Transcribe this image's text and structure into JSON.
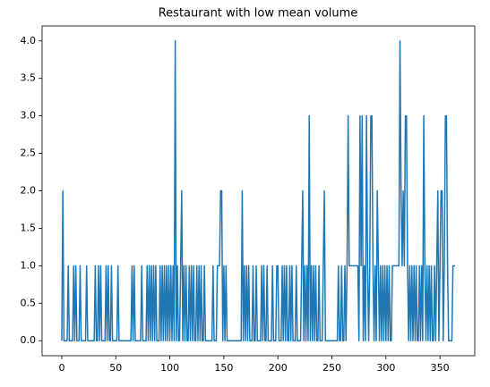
{
  "chart_data": {
    "type": "line",
    "title": "Restaurant with low mean volume",
    "color": "#1f77b4",
    "x": [
      0,
      1,
      2,
      3,
      4,
      5,
      6,
      7,
      8,
      9,
      10,
      11,
      12,
      13,
      14,
      15,
      16,
      17,
      18,
      19,
      20,
      21,
      22,
      23,
      24,
      25,
      26,
      27,
      28,
      29,
      30,
      31,
      32,
      33,
      34,
      35,
      36,
      37,
      38,
      39,
      40,
      41,
      42,
      43,
      44,
      45,
      46,
      47,
      48,
      49,
      50,
      51,
      52,
      53,
      54,
      55,
      56,
      57,
      58,
      59,
      60,
      61,
      62,
      63,
      64,
      65,
      66,
      67,
      68,
      69,
      70,
      71,
      72,
      73,
      74,
      75,
      76,
      77,
      78,
      79,
      80,
      81,
      82,
      83,
      84,
      85,
      86,
      87,
      88,
      89,
      90,
      91,
      92,
      93,
      94,
      95,
      96,
      97,
      98,
      99,
      100,
      101,
      102,
      103,
      104,
      105,
      106,
      107,
      108,
      109,
      110,
      111,
      112,
      113,
      114,
      115,
      116,
      117,
      118,
      119,
      120,
      121,
      122,
      123,
      124,
      125,
      126,
      127,
      128,
      129,
      130,
      131,
      132,
      133,
      134,
      135,
      136,
      137,
      138,
      139,
      140,
      141,
      142,
      143,
      144,
      145,
      146,
      147,
      148,
      149,
      150,
      151,
      152,
      153,
      154,
      155,
      156,
      157,
      158,
      159,
      160,
      161,
      162,
      163,
      164,
      165,
      166,
      167,
      168,
      169,
      170,
      171,
      172,
      173,
      174,
      175,
      176,
      177,
      178,
      179,
      180,
      181,
      182,
      183,
      184,
      185,
      186,
      187,
      188,
      189,
      190,
      191,
      192,
      193,
      194,
      195,
      196,
      197,
      198,
      199,
      200,
      201,
      202,
      203,
      204,
      205,
      206,
      207,
      208,
      209,
      210,
      211,
      212,
      213,
      214,
      215,
      216,
      217,
      218,
      219,
      220,
      221,
      222,
      223,
      224,
      225,
      226,
      227,
      228,
      229,
      230,
      231,
      232,
      233,
      234,
      235,
      236,
      237,
      238,
      239,
      240,
      241,
      242,
      243,
      244,
      245,
      246,
      247,
      248,
      249,
      250,
      251,
      252,
      253,
      254,
      255,
      256,
      257,
      258,
      259,
      260,
      261,
      262,
      263,
      264,
      265,
      266,
      267,
      268,
      269,
      270,
      271,
      272,
      273,
      274,
      275,
      276,
      277,
      278,
      279,
      280,
      281,
      282,
      283,
      284,
      285,
      286,
      287,
      288,
      289,
      290,
      291,
      292,
      293,
      294,
      295,
      296,
      297,
      298,
      299,
      300,
      301,
      302,
      303,
      304,
      305,
      306,
      307,
      308,
      309,
      310,
      311,
      312,
      313,
      314,
      315,
      316,
      317,
      318,
      319,
      320,
      321,
      322,
      323,
      324,
      325,
      326,
      327,
      328,
      329,
      330,
      331,
      332,
      333,
      334,
      335,
      336,
      337,
      338,
      339,
      340,
      341,
      342,
      343,
      344,
      345,
      346,
      347,
      348,
      349,
      350,
      351,
      352,
      353,
      354,
      355,
      356,
      357,
      358,
      359,
      360,
      361,
      362,
      363,
      364
    ],
    "values": [
      0,
      2,
      0,
      0,
      0,
      0,
      1,
      0,
      0,
      0,
      0,
      1,
      0,
      1,
      0,
      0,
      0,
      1,
      0,
      0,
      0,
      0,
      0,
      1,
      0,
      0,
      0,
      0,
      0,
      0,
      0,
      1,
      0,
      0,
      1,
      0,
      1,
      0,
      0,
      0,
      0,
      1,
      0,
      1,
      0,
      0,
      1,
      0,
      0,
      0,
      0,
      0,
      1,
      0,
      0,
      0,
      0,
      0,
      0,
      0,
      0,
      0,
      0,
      0,
      0,
      1,
      0,
      1,
      0,
      0,
      0,
      0,
      0,
      0,
      1,
      0,
      0,
      0,
      0,
      1,
      0,
      1,
      0,
      1,
      0,
      1,
      0,
      1,
      0,
      0,
      0,
      1,
      0,
      1,
      0,
      1,
      0,
      1,
      0,
      1,
      0,
      1,
      0,
      1,
      0,
      4,
      0,
      1,
      0,
      0,
      1,
      2,
      0,
      1,
      0,
      1,
      0,
      0,
      1,
      0,
      1,
      0,
      1,
      0,
      0,
      1,
      0,
      1,
      0,
      1,
      0,
      0,
      1,
      0,
      0,
      0,
      0,
      0,
      0,
      0,
      1,
      0,
      0,
      0,
      1,
      1,
      1,
      2,
      2,
      0,
      1,
      0,
      1,
      0,
      0,
      0,
      0,
      0,
      0,
      0,
      0,
      0,
      0,
      0,
      0,
      0,
      0,
      2,
      0,
      1,
      0,
      1,
      0,
      1,
      0,
      0,
      0,
      1,
      0,
      0,
      1,
      0,
      0,
      0,
      0,
      1,
      0,
      1,
      0,
      0,
      1,
      0,
      0,
      0,
      0,
      1,
      0,
      0,
      0,
      1,
      1,
      0,
      0,
      0,
      1,
      0,
      1,
      0,
      1,
      0,
      0,
      1,
      0,
      1,
      0,
      0,
      0,
      1,
      0,
      0,
      0,
      0,
      1,
      2,
      0,
      1,
      0,
      1,
      0,
      3,
      0,
      1,
      0,
      1,
      0,
      1,
      0,
      0,
      1,
      0,
      0,
      0,
      1,
      2,
      0,
      0,
      0,
      0,
      0,
      0,
      0,
      0,
      0,
      0,
      0,
      0,
      1,
      0,
      0,
      1,
      0,
      0,
      1,
      0,
      1,
      3,
      1,
      1,
      1,
      1,
      1,
      1,
      1,
      1,
      1,
      0,
      3,
      1,
      3,
      0,
      1,
      0,
      3,
      1,
      0,
      1,
      3,
      3,
      1,
      0,
      1,
      0,
      2,
      1,
      0,
      1,
      0,
      1,
      0,
      1,
      0,
      1,
      0,
      1,
      0,
      0,
      1,
      1,
      1,
      1,
      1,
      1,
      1,
      4,
      2,
      1,
      2,
      1,
      3,
      3,
      1,
      0,
      1,
      0,
      1,
      0,
      1,
      0,
      1,
      0,
      0,
      1,
      0,
      1,
      0,
      3,
      1,
      0,
      1,
      0,
      1,
      0,
      1,
      0,
      0,
      1,
      0,
      1,
      2,
      0,
      1,
      2,
      2,
      0,
      1,
      3,
      3,
      1,
      0,
      0,
      0,
      0,
      1,
      1,
      1
    ],
    "xlim": [
      -18.2,
      382.2
    ],
    "xticks": [
      0,
      50,
      100,
      150,
      200,
      250,
      300,
      350
    ],
    "ylim": [
      -0.2,
      4.2
    ],
    "yticks": [
      {
        "value": 0,
        "label": "0.0"
      },
      {
        "value": 0.5,
        "label": "0.5"
      },
      {
        "value": 1,
        "label": "1.0"
      },
      {
        "value": 1.5,
        "label": "1.5"
      },
      {
        "value": 2,
        "label": "2.0"
      },
      {
        "value": 2.5,
        "label": "2.5"
      },
      {
        "value": 3,
        "label": "3.0"
      },
      {
        "value": 3.5,
        "label": "3.5"
      },
      {
        "value": 4,
        "label": "4.0"
      }
    ]
  }
}
